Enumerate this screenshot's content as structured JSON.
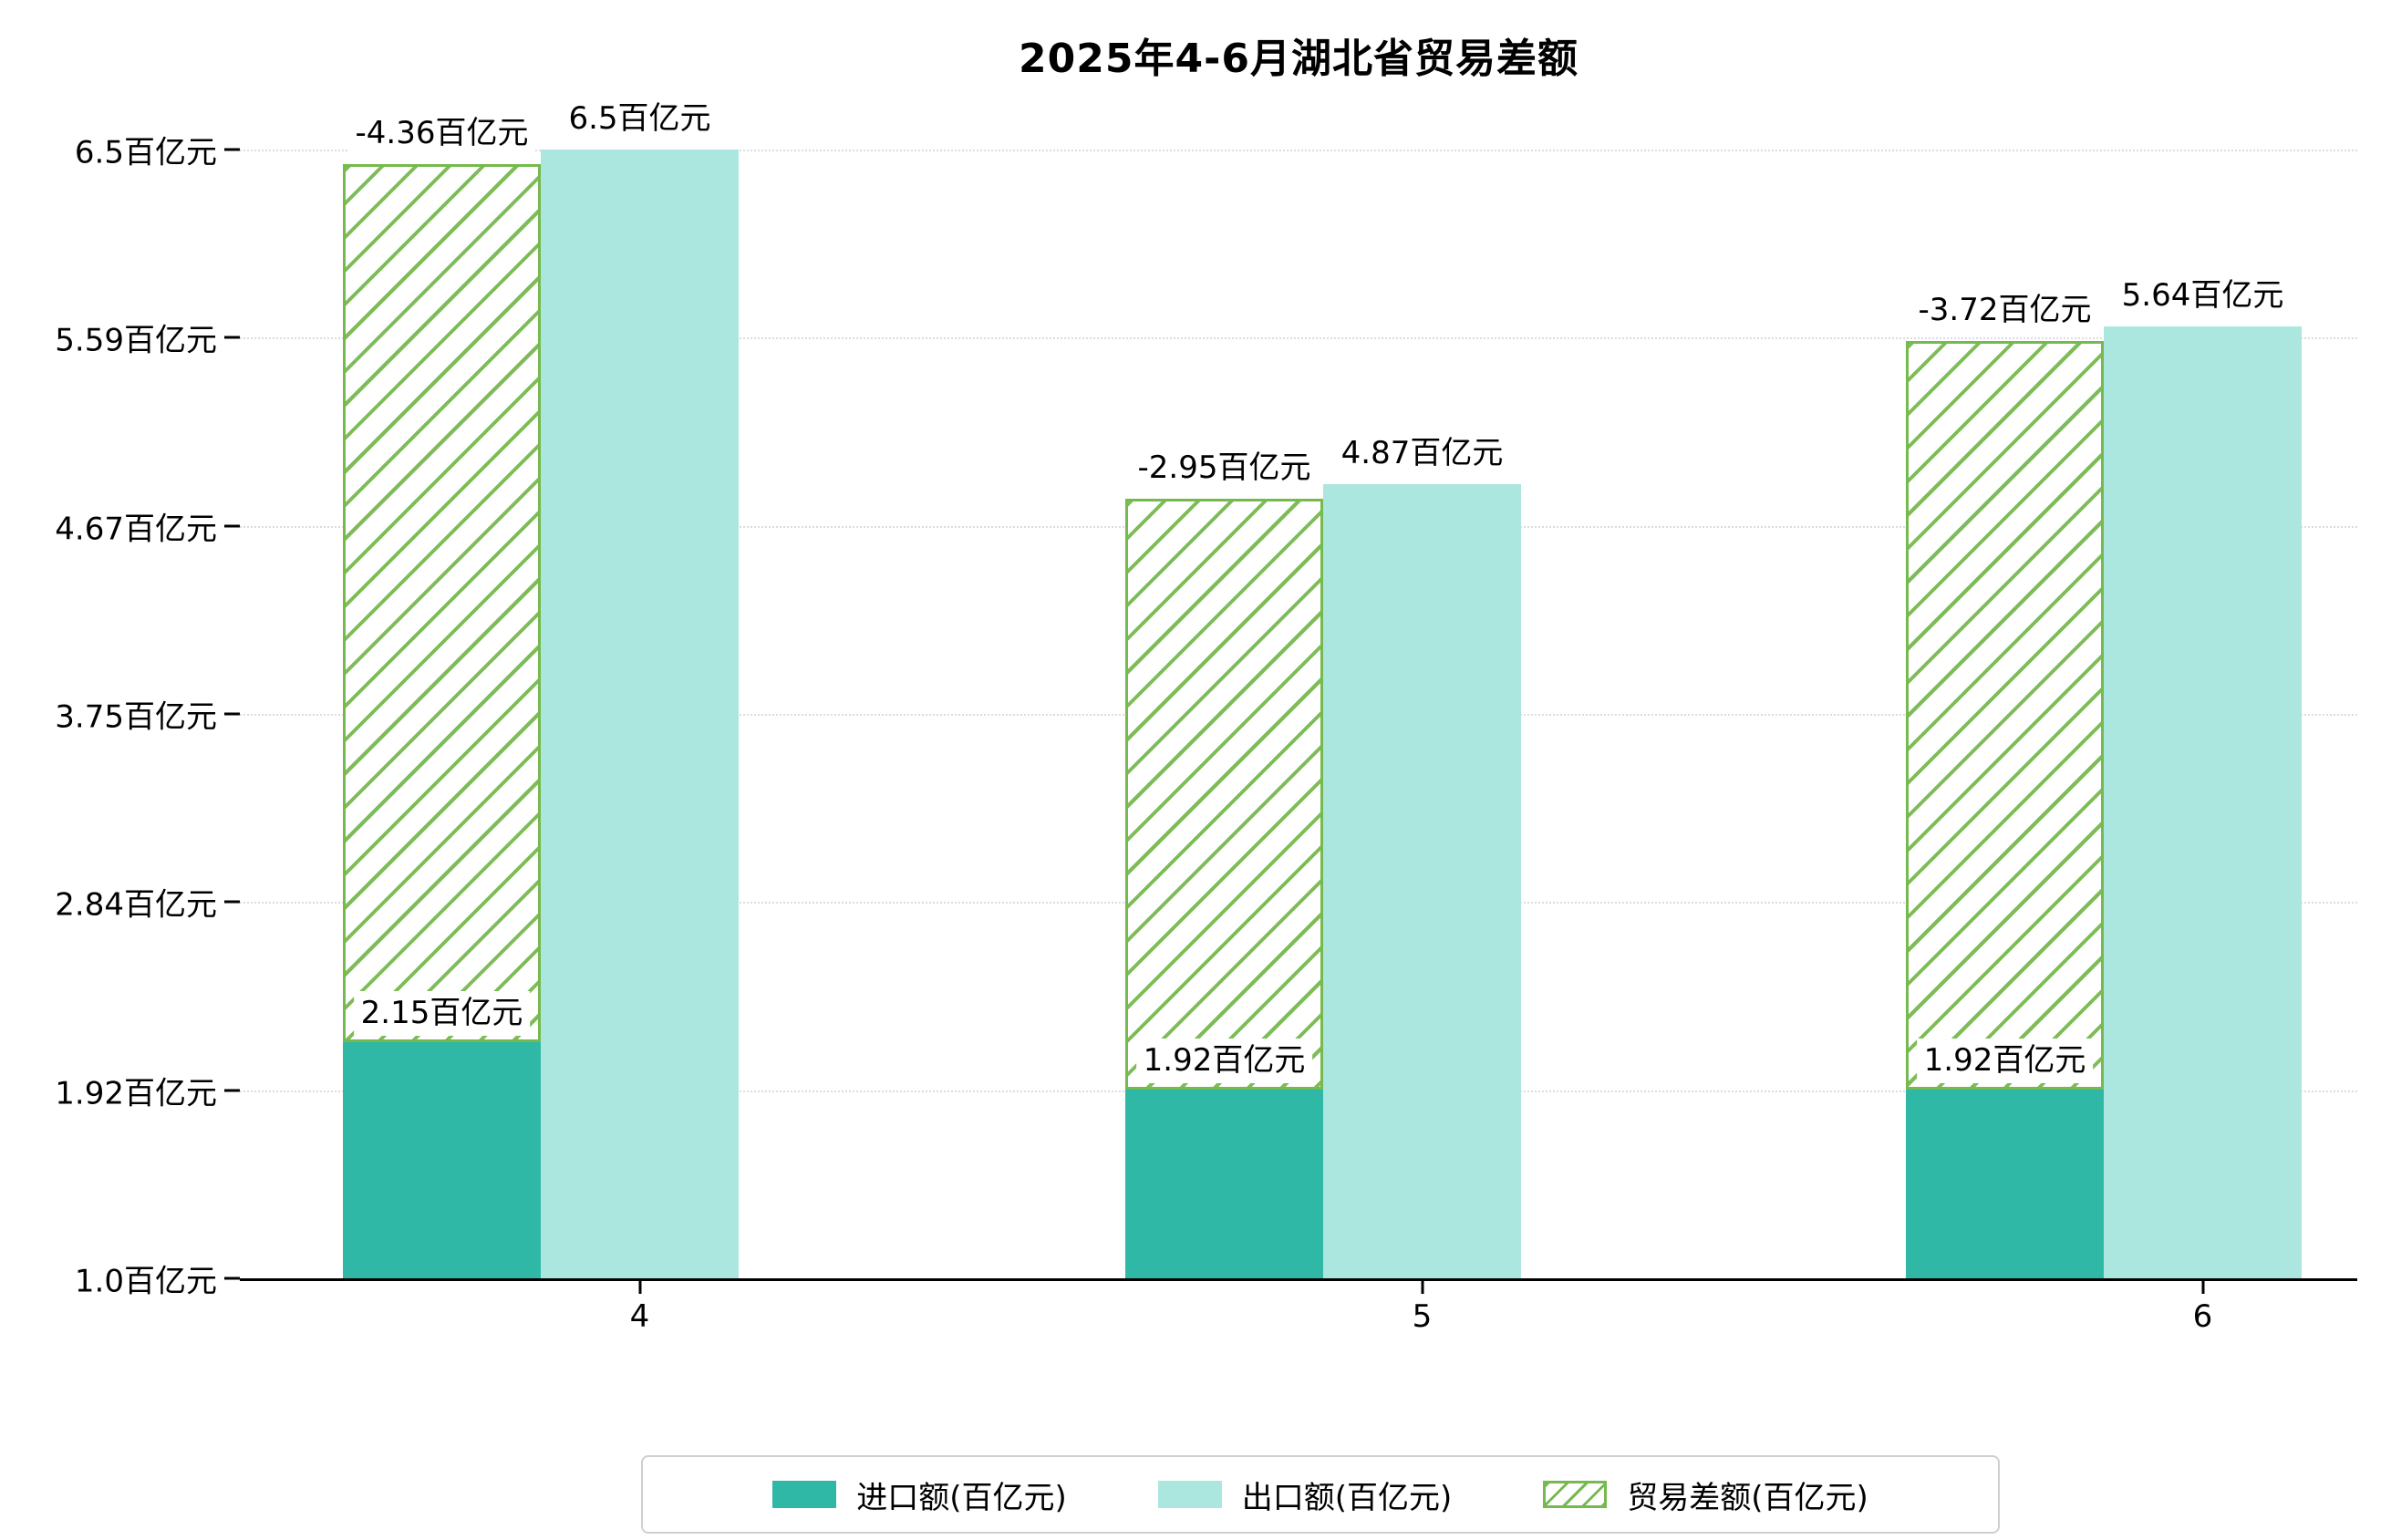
{
  "chart_data": {
    "type": "bar",
    "title": "2025年4-6月湖北省贸易差额",
    "categories": [
      "4",
      "5",
      "6"
    ],
    "xlabel": "",
    "ylabel": "",
    "unit": "百亿元",
    "ylim": [
      1.0,
      6.5
    ],
    "y_tick_values": [
      6.5,
      5.59,
      4.67,
      3.75,
      2.84,
      1.92,
      1.0
    ],
    "grid": "dotted-horizontal",
    "legend_position": "bottom",
    "series": [
      {
        "name": "进口额(百亿元)",
        "style": "solid",
        "color": "#30b8a7",
        "values": [
          2.15,
          1.92,
          1.92
        ],
        "data_labels": [
          "2.15百亿元",
          "1.92百亿元",
          "1.92百亿元"
        ]
      },
      {
        "name": "出口额(百亿元)",
        "style": "solid",
        "color": "#abe7df",
        "values": [
          6.5,
          4.87,
          5.64
        ],
        "data_labels": [
          "6.5百亿元",
          "4.87百亿元",
          "5.64百亿元"
        ]
      },
      {
        "name": "贸易差额(百亿元)",
        "style": "hatched",
        "color": "#76b94e",
        "values": [
          -4.36,
          -2.95,
          -3.72
        ],
        "data_labels": [
          "-4.36百亿元",
          "-2.95百亿元",
          "-3.72百亿元"
        ]
      }
    ]
  },
  "y_axis": {
    "ticks": [
      "6.5百亿元",
      "5.59百亿元",
      "4.67百亿元",
      "3.75百亿元",
      "2.84百亿元",
      "1.92百亿元",
      "1.0百亿元"
    ]
  },
  "x_axis": {
    "ticks": [
      "4",
      "5",
      "6"
    ]
  }
}
